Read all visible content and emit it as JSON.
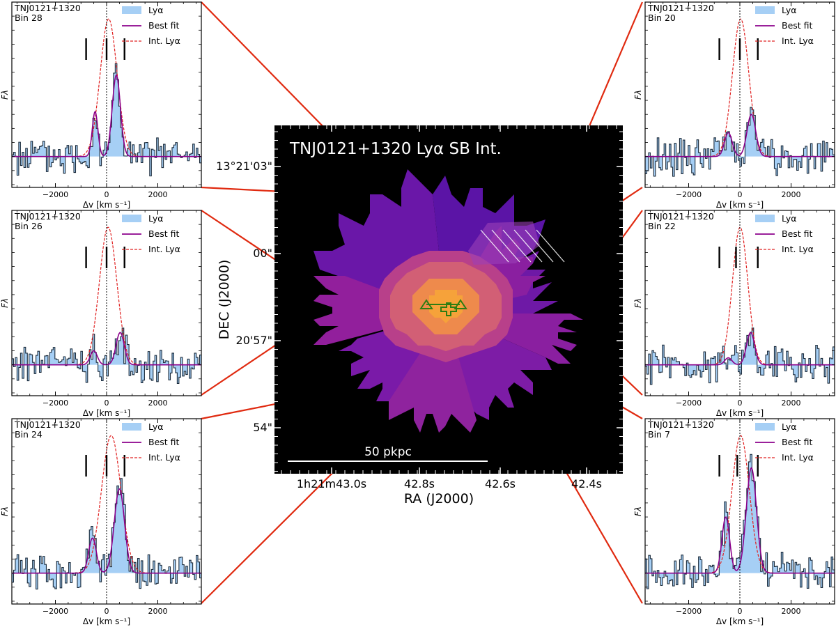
{
  "figure": {
    "map_title": "TNJ0121+1320 Lyα SB Int.",
    "map_xlabel": "RA (J2000)",
    "map_ylabel": "DEC (J2000)",
    "map_xticks": [
      "1h21m43.0s",
      "42.8s",
      "42.6s",
      "42.4s"
    ],
    "map_yticks": [
      "13°21'03\"",
      "00\"",
      "20'57\"",
      "54\""
    ],
    "scalebar_label": "50 pkpc",
    "colors": {
      "lya_fill": "#a6cff5",
      "spectrum_edge": "#1a2a3a",
      "best_fit": "#8b008b",
      "int_lya": "#e02020",
      "callout_line": "#e02a10",
      "marker": "#2e7d12"
    }
  },
  "chart_data": [
    {
      "type": "line",
      "object": "TNJ0121+1320",
      "bin": "Bin 28",
      "legend": [
        "Lyα",
        "Best fit",
        "Int. Lyα"
      ],
      "xlabel": "Δv [km s⁻¹]",
      "ylabel": "Fλ",
      "xticks": [
        -2000,
        0,
        2000
      ],
      "xlim": [
        -3700,
        3700
      ],
      "ylim": [
        -0.22,
        1.1
      ],
      "vlines": [
        -800,
        0,
        700
      ],
      "components": [
        {
          "v": -450,
          "amp": 0.32,
          "sigma": 110
        },
        {
          "v": 380,
          "amp": 0.58,
          "sigma": 160
        }
      ],
      "int_lya": {
        "v": 80,
        "amp": 0.98,
        "sigma": 330
      }
    },
    {
      "type": "line",
      "object": "TNJ0121+1320",
      "bin": "Bin 20",
      "legend": [
        "Lyα",
        "Best fit",
        "Int. Lyα"
      ],
      "xlabel": "Δv [km s⁻¹]",
      "ylabel": "Fλ",
      "xticks": [
        -2000,
        0,
        2000
      ],
      "xlim": [
        -3700,
        3700
      ],
      "ylim": [
        -0.22,
        1.1
      ],
      "vlines": [
        -800,
        0,
        700
      ],
      "components": [
        {
          "v": -450,
          "amp": 0.17,
          "sigma": 150
        },
        {
          "v": 450,
          "amp": 0.3,
          "sigma": 170
        }
      ],
      "int_lya": {
        "v": 30,
        "amp": 0.98,
        "sigma": 320
      }
    },
    {
      "type": "line",
      "object": "TNJ0121+1320",
      "bin": "Bin 26",
      "legend": [
        "Lyα",
        "Best fit",
        "Int. Lyα"
      ],
      "xlabel": "Δv [km s⁻¹]",
      "ylabel": "Fλ",
      "xticks": [
        -2000,
        0,
        2000
      ],
      "xlim": [
        -3700,
        3700
      ],
      "ylim": [
        -0.22,
        1.1
      ],
      "vlines": [
        -800,
        0,
        700
      ],
      "components": [
        {
          "v": -500,
          "amp": 0.1,
          "sigma": 140
        },
        {
          "v": 530,
          "amp": 0.23,
          "sigma": 160
        }
      ],
      "int_lya": {
        "v": 60,
        "amp": 0.98,
        "sigma": 340
      }
    },
    {
      "type": "line",
      "object": "TNJ0121+1320",
      "bin": "Bin 22",
      "legend": [
        "Lyα",
        "Best fit",
        "Int. Lyα"
      ],
      "xlabel": "Δv [km s⁻¹]",
      "ylabel": "Fλ",
      "xticks": [
        -2000,
        0,
        2000
      ],
      "xlim": [
        -3700,
        3700
      ],
      "ylim": [
        -0.22,
        1.1
      ],
      "vlines": [
        -800,
        -150,
        700
      ],
      "components": [
        {
          "v": -450,
          "amp": 0.05,
          "sigma": 140
        },
        {
          "v": 420,
          "amp": 0.23,
          "sigma": 160
        }
      ],
      "int_lya": {
        "v": 10,
        "amp": 0.98,
        "sigma": 300
      }
    },
    {
      "type": "line",
      "object": "TNJ0121+1320",
      "bin": "Bin 24",
      "legend": [
        "Lyα",
        "Best fit",
        "Int. Lyα"
      ],
      "xlabel": "Δv [km s⁻¹]",
      "ylabel": "Fλ",
      "xticks": [
        -2000,
        0,
        2000
      ],
      "xlim": [
        -3700,
        3700
      ],
      "ylim": [
        -0.22,
        1.1
      ],
      "vlines": [
        -800,
        0,
        700
      ],
      "components": [
        {
          "v": -550,
          "amp": 0.25,
          "sigma": 150
        },
        {
          "v": 500,
          "amp": 0.6,
          "sigma": 200
        }
      ],
      "int_lya": {
        "v": 180,
        "amp": 0.98,
        "sigma": 380
      }
    },
    {
      "type": "line",
      "object": "TNJ0121+1320",
      "bin": "Bin 7",
      "legend": [
        "Lyα",
        "Best fit",
        "Int. Lyα"
      ],
      "xlabel": "Δv [km s⁻¹]",
      "ylabel": "Fλ",
      "xticks": [
        -2000,
        0,
        2000
      ],
      "xlim": [
        -3700,
        3700
      ],
      "ylim": [
        -0.22,
        1.1
      ],
      "vlines": [
        -800,
        -100,
        700
      ],
      "components": [
        {
          "v": -550,
          "amp": 0.4,
          "sigma": 150
        },
        {
          "v": 450,
          "amp": 0.75,
          "sigma": 200
        }
      ],
      "int_lya": {
        "v": 30,
        "amp": 0.98,
        "sigma": 340
      }
    }
  ]
}
